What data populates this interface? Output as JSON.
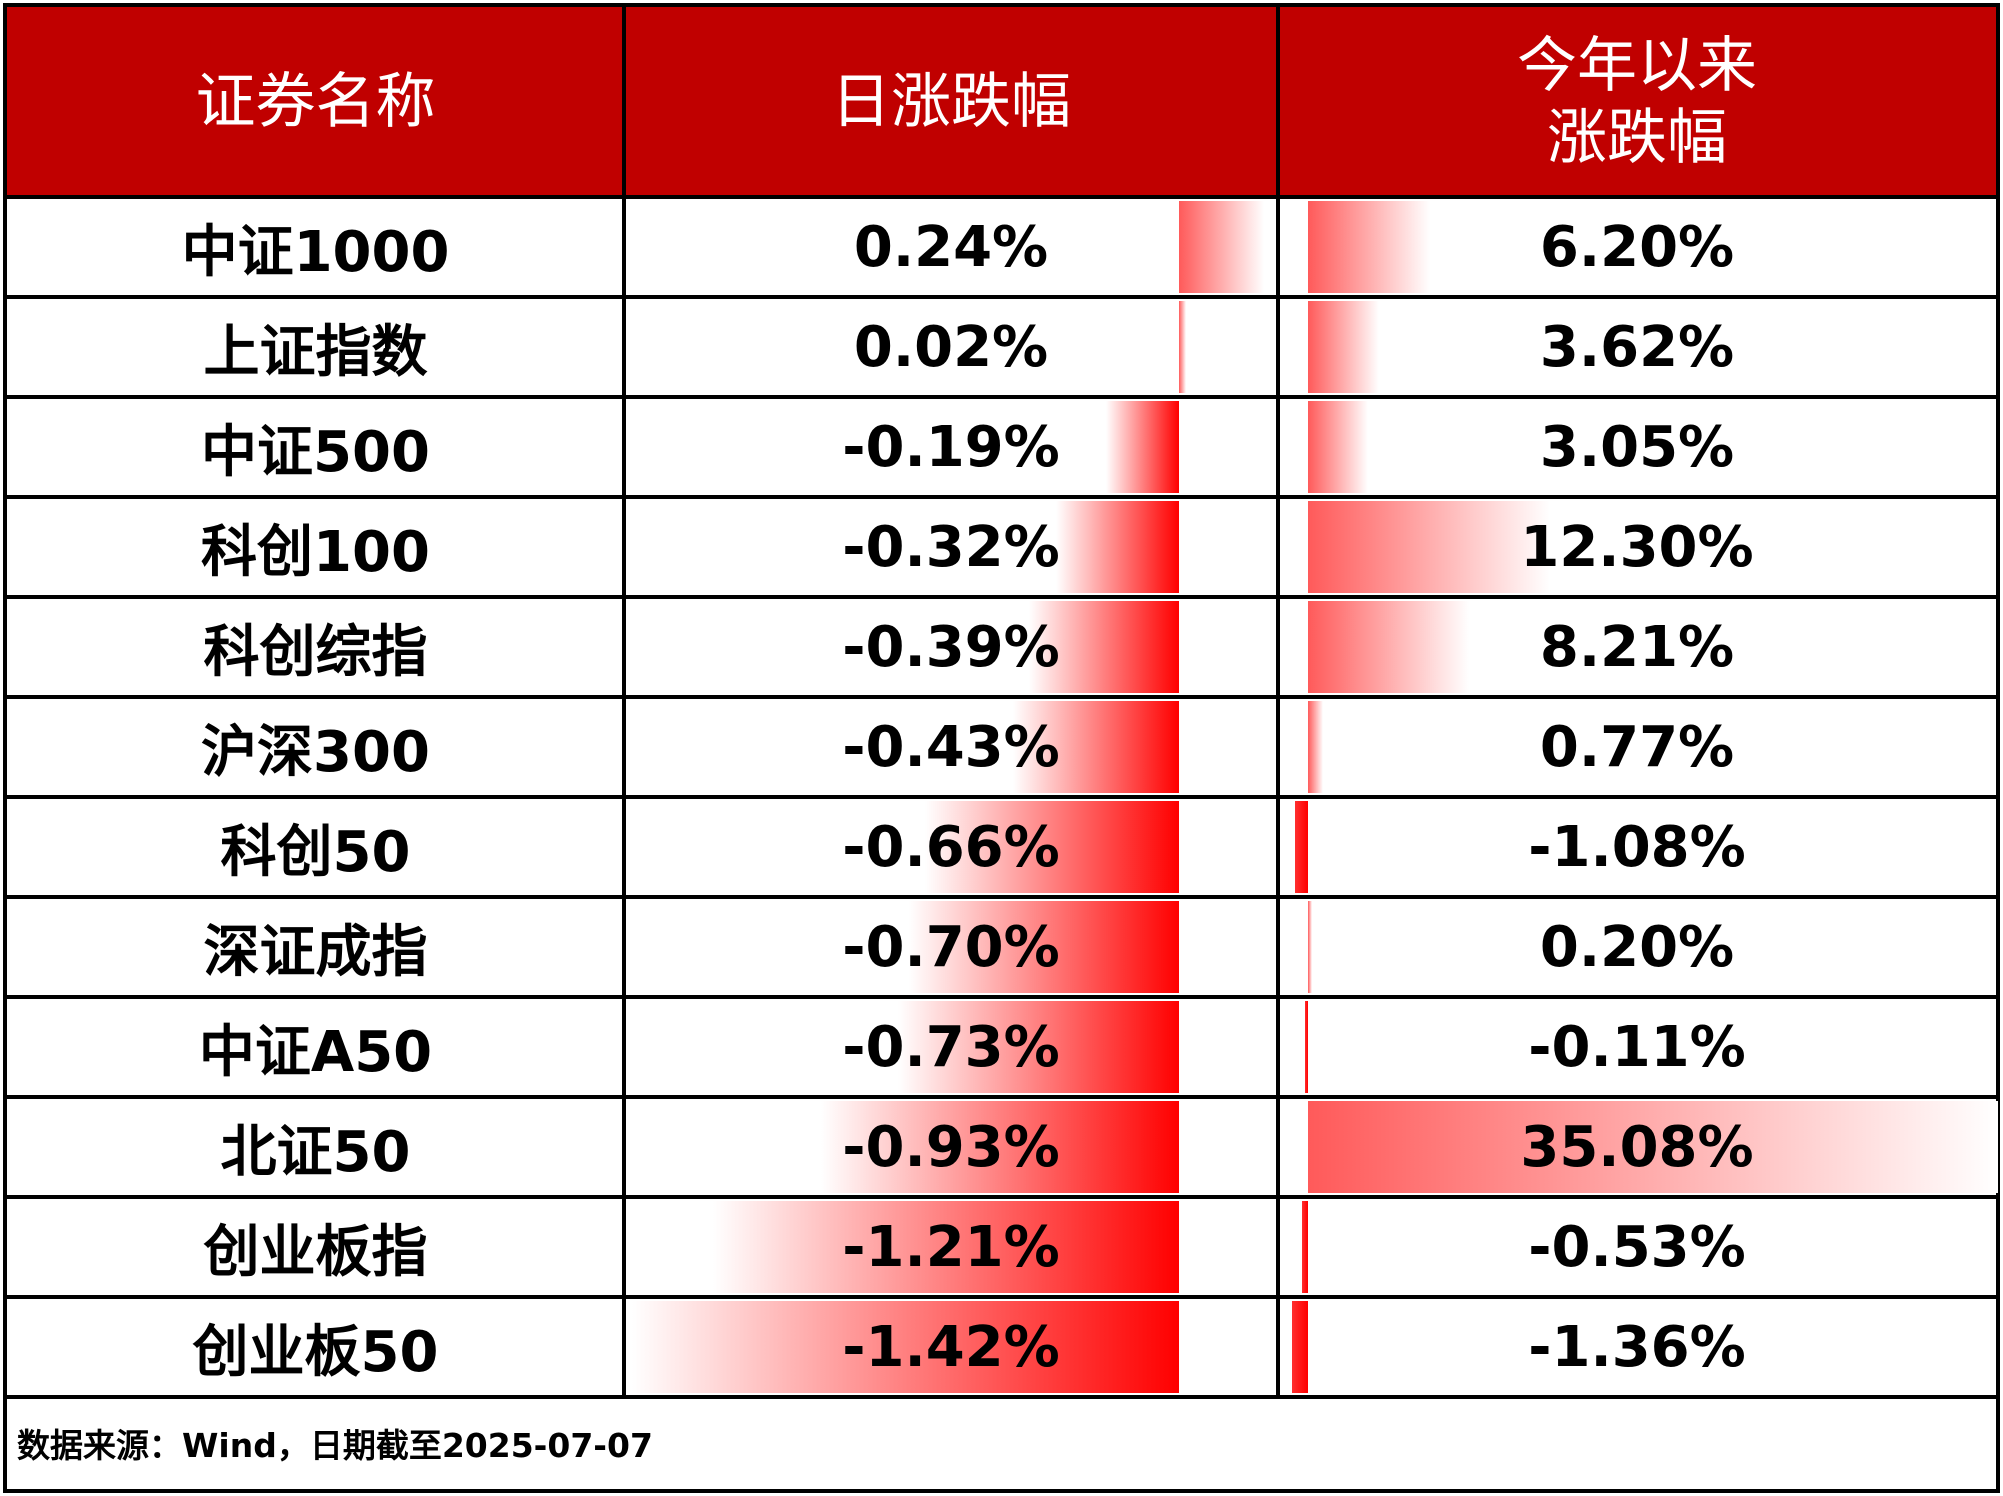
{
  "header": {
    "col_name": "证券名称",
    "col_daily": "日涨跌幅",
    "col_ytd_line1": "今年以来",
    "col_ytd_line2": "涨跌幅"
  },
  "colors": {
    "header_bg": "#c00000",
    "bar_red": "#ff0000",
    "bar_red_light": "#ff5a5a"
  },
  "chart_data": {
    "type": "table",
    "columns": [
      "证券名称",
      "日涨跌幅",
      "今年以来涨跌幅"
    ],
    "rows": [
      {
        "name": "中证1000",
        "daily": 0.24,
        "daily_text": "0.24%",
        "ytd": 6.2,
        "ytd_text": "6.20%"
      },
      {
        "name": "上证指数",
        "daily": 0.02,
        "daily_text": "0.02%",
        "ytd": 3.62,
        "ytd_text": "3.62%"
      },
      {
        "name": "中证500",
        "daily": -0.19,
        "daily_text": "-0.19%",
        "ytd": 3.05,
        "ytd_text": "3.05%"
      },
      {
        "name": "科创100",
        "daily": -0.32,
        "daily_text": "-0.32%",
        "ytd": 12.3,
        "ytd_text": "12.30%"
      },
      {
        "name": "科创综指",
        "daily": -0.39,
        "daily_text": "-0.39%",
        "ytd": 8.21,
        "ytd_text": "8.21%"
      },
      {
        "name": "沪深300",
        "daily": -0.43,
        "daily_text": "-0.43%",
        "ytd": 0.77,
        "ytd_text": "0.77%"
      },
      {
        "name": "科创50",
        "daily": -0.66,
        "daily_text": "-0.66%",
        "ytd": -1.08,
        "ytd_text": "-1.08%"
      },
      {
        "name": "深证成指",
        "daily": -0.7,
        "daily_text": "-0.70%",
        "ytd": 0.2,
        "ytd_text": "0.20%"
      },
      {
        "name": "中证A50",
        "daily": -0.73,
        "daily_text": "-0.73%",
        "ytd": -0.11,
        "ytd_text": "-0.11%"
      },
      {
        "name": "北证50",
        "daily": -0.93,
        "daily_text": "-0.93%",
        "ytd": 35.08,
        "ytd_text": "35.08%"
      },
      {
        "name": "创业板指",
        "daily": -1.21,
        "daily_text": "-1.21%",
        "ytd": -0.53,
        "ytd_text": "-0.53%"
      },
      {
        "name": "创业板50",
        "daily": -1.42,
        "daily_text": "-1.42%",
        "ytd": -1.36,
        "ytd_text": "-1.36%"
      }
    ]
  },
  "footer": {
    "source": "数据来源：Wind，日期截至2025-07-07"
  }
}
